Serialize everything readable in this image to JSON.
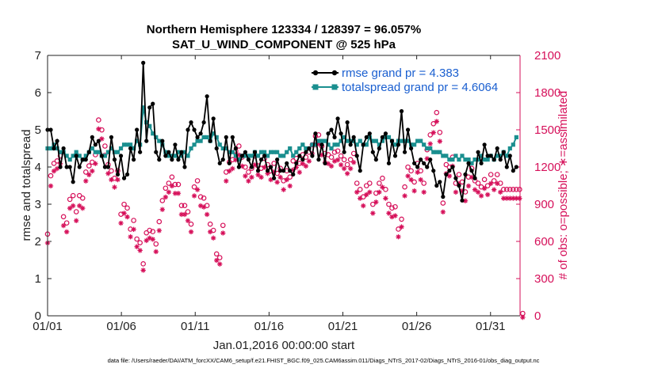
{
  "chart_data": {
    "type": "line",
    "title_line1": "Northern Hemisphere 123334 / 128397 = 96.057%",
    "title_line2": "SAT_U_WIND_COMPONENT @ 525 hPa",
    "xlabel": "Jan.01,2016 00:00:00 start",
    "ylabel_left": "rmse and totalspread",
    "ylabel_right": "# of obs: o=possible; ∗=assimilated",
    "footer": "data file: /Users/raeder/DAI/ATM_forcXX/CAM6_setup/f.e21.FHIST_BGC.f09_025.CAM6assim.011/Diags_NTrS_2017-02/Diags_NTrS_2016-01/obs_diag_output.nc",
    "xlim": [
      0,
      32
    ],
    "ylim_left": [
      0,
      7
    ],
    "ylim_right": [
      0,
      2100
    ],
    "x_ticks": [
      0,
      5,
      10,
      15,
      20,
      25,
      30
    ],
    "x_tick_labels": [
      "01/01",
      "01/06",
      "01/11",
      "01/16",
      "01/21",
      "01/26",
      "01/31"
    ],
    "y_ticks_left": [
      "0",
      "1",
      "2",
      "3",
      "4",
      "5",
      "6",
      "7"
    ],
    "y_ticks_right": [
      "0",
      "300",
      "600",
      "900",
      "1200",
      "1500",
      "1800",
      "2100"
    ],
    "legend": [
      {
        "name": "rmse grand pr = 4.383",
        "color": "#000000"
      },
      {
        "name": "totalspread grand pr = 4.6064",
        "color": "#1a8f8f"
      }
    ],
    "colors": {
      "rmse": "#000000",
      "spread": "#1a8f8f",
      "obs": "#d6105a"
    },
    "rmse_values": [
      5.0,
      5.0,
      4.5,
      4.7,
      4.0,
      4.5,
      4.0,
      4.0,
      3.6,
      4.3,
      4.0,
      4.2,
      4.2,
      4.4,
      4.8,
      4.6,
      4.7,
      4.3,
      4.0,
      4.0,
      4.8,
      4.2,
      3.8,
      4.3,
      3.7,
      3.8,
      4.5,
      4.2,
      5.0,
      4.4,
      6.8,
      4.7,
      5.6,
      5.7,
      4.4,
      4.2,
      4.7,
      4.3,
      4.4,
      4.2,
      4.6,
      4.2,
      4.4,
      4.0,
      5.0,
      5.2,
      5.0,
      4.8,
      4.9,
      5.2,
      5.9,
      4.7,
      5.3,
      4.5,
      4.1,
      4.2,
      4.8,
      4.1,
      4.8,
      4.5,
      4.0,
      4.3,
      4.4,
      4.2,
      4.0,
      4.4,
      3.9,
      4.2,
      4.3,
      3.9,
      4.0,
      3.7,
      4.2,
      3.9,
      3.9,
      4.1,
      3.9,
      3.8,
      4.1,
      4.3,
      4.2,
      4.4,
      4.5,
      4.3,
      4.9,
      4.2,
      4.6,
      4.1,
      4.9,
      5.0,
      4.8,
      5.3,
      4.9,
      4.4,
      5.2,
      4.6,
      4.8,
      4.3,
      3.9,
      4.6,
      4.8,
      4.9,
      4.4,
      4.2,
      4.5,
      4.8,
      4.9,
      4.1,
      4.7,
      4.3,
      4.6,
      5.5,
      4.4,
      5.0,
      4.5,
      4.1,
      4.0,
      4.2,
      4.1,
      4.0,
      4.2,
      3.9,
      3.5,
      3.6,
      3.2,
      3.8,
      3.9,
      4.0,
      3.7,
      3.5,
      3.1,
      3.8,
      4.1,
      3.9,
      3.7,
      4.4,
      4.1,
      4.6,
      4.3,
      4.3,
      4.2,
      4.5,
      4.2,
      4.4,
      4.0,
      4.3,
      3.9,
      4.0
    ],
    "spread_values": [
      4.5,
      4.5,
      4.6,
      4.5,
      4.4,
      4.4,
      4.3,
      4.2,
      4.3,
      4.4,
      4.3,
      4.2,
      4.3,
      4.4,
      4.5,
      4.4,
      4.4,
      4.3,
      4.3,
      4.4,
      4.5,
      4.4,
      4.4,
      4.5,
      4.6,
      4.6,
      4.6,
      4.5,
      4.7,
      4.6,
      5.6,
      5.2,
      5.1,
      4.9,
      4.8,
      4.7,
      4.6,
      4.4,
      4.3,
      4.3,
      4.3,
      4.4,
      4.3,
      4.4,
      4.3,
      4.5,
      4.6,
      4.7,
      4.7,
      4.8,
      4.8,
      4.7,
      4.9,
      4.8,
      4.6,
      4.5,
      4.5,
      4.4,
      4.4,
      4.3,
      4.2,
      4.3,
      4.3,
      4.3,
      4.3,
      4.4,
      4.3,
      4.4,
      4.4,
      4.3,
      4.4,
      4.4,
      4.4,
      4.3,
      4.3,
      4.4,
      4.5,
      4.3,
      4.4,
      4.5,
      4.6,
      4.5,
      4.5,
      4.6,
      4.6,
      4.7,
      4.7,
      4.7,
      4.6,
      4.5,
      4.6,
      4.6,
      4.7,
      4.8,
      4.7,
      4.7,
      4.7,
      4.6,
      4.7,
      4.6,
      4.6,
      4.8,
      4.7,
      4.7,
      4.6,
      4.7,
      4.8,
      4.8,
      4.7,
      4.6,
      4.7,
      4.7,
      4.7,
      4.7,
      4.6,
      4.6,
      4.7,
      4.7,
      4.6,
      4.5,
      4.5,
      4.4,
      4.4,
      4.4,
      4.3,
      4.3,
      4.2,
      4.2,
      4.3,
      4.2,
      4.3,
      4.2,
      4.2,
      4.1,
      4.2,
      4.2,
      4.3,
      4.2,
      4.2,
      4.3,
      4.2,
      4.3,
      4.3,
      4.4,
      4.3,
      4.5,
      4.6,
      4.8
    ],
    "obs_possible": [
      640,
      1110,
      1210,
      1230,
      1270,
      780,
      730,
      920,
      950,
      820,
      950,
      930,
      1140,
      1190,
      1220,
      1280,
      1560,
      1480,
      1350,
      1200,
      1150,
      1090,
      1150,
      800,
      880,
      850,
      680,
      750,
      600,
      570,
      400,
      650,
      670,
      660,
      560,
      740,
      910,
      1010,
      1050,
      1100,
      1040,
      1040,
      870,
      870,
      820,
      720,
      1020,
      1070,
      940,
      930,
      870,
      720,
      670,
      480,
      450,
      710,
      1140,
      1220,
      1240,
      1310,
      1350,
      1260,
      1180,
      1140,
      1170,
      1270,
      1190,
      1170,
      1250,
      1200,
      1150,
      1210,
      1130,
      1170,
      1070,
      1150,
      1100,
      1230,
      1250,
      1210,
      1280,
      1260,
      1300,
      1360,
      1430,
      1440,
      1350,
      1290,
      1280,
      1260,
      1300,
      1310,
      1270,
      1240,
      1200,
      1240,
      1290,
      1050,
      1000,
      940,
      1030,
      1050,
      880,
      970,
      1050,
      1090,
      1000,
      880,
      850,
      860,
      680,
      760,
      1020,
      1180,
      1150,
      1060,
      1210,
      1150,
      1050,
      1320,
      1440,
      1530,
      1620,
      1460,
      890,
      1200,
      1180,
      1260,
      1050,
      1120,
      1060,
      980,
      1100,
      1170,
      1070,
      1050,
      1020,
      1080,
      1030,
      1120,
      1070,
      1120,
      1050,
      1000,
      1000,
      1000,
      1000,
      1000,
      1000,
      0
    ],
    "obs_assimilated": [
      600,
      1060,
      1180,
      1200,
      1240,
      740,
      690,
      880,
      900,
      780,
      900,
      880,
      1100,
      1150,
      1180,
      1240,
      1520,
      1440,
      1310,
      1160,
      1110,
      1050,
      1110,
      760,
      840,
      810,
      650,
      710,
      570,
      540,
      380,
      620,
      640,
      630,
      530,
      700,
      870,
      970,
      1010,
      1060,
      1000,
      1000,
      830,
      830,
      780,
      690,
      980,
      1030,
      900,
      890,
      830,
      690,
      640,
      460,
      430,
      680,
      1100,
      1180,
      1200,
      1270,
      1310,
      1220,
      1140,
      1100,
      1130,
      1230,
      1150,
      1130,
      1210,
      1160,
      1110,
      1170,
      1090,
      1130,
      1030,
      1110,
      1060,
      1190,
      1210,
      1170,
      1240,
      1220,
      1260,
      1320,
      1390,
      1400,
      1310,
      1250,
      1240,
      1220,
      1260,
      1270,
      1230,
      1200,
      1160,
      1200,
      1250,
      1010,
      960,
      900,
      990,
      1010,
      840,
      930,
      1010,
      1050,
      960,
      840,
      810,
      820,
      650,
      730,
      980,
      1140,
      1110,
      1020,
      1170,
      1110,
      1010,
      1280,
      1400,
      1490,
      1580,
      1420,
      850,
      1160,
      1140,
      1220,
      1010,
      1080,
      1020,
      940,
      1060,
      1130,
      1030,
      1010,
      980,
      1040,
      990,
      1080,
      1030,
      1080,
      1010,
      960,
      960,
      960,
      960,
      960,
      960,
      0
    ]
  }
}
